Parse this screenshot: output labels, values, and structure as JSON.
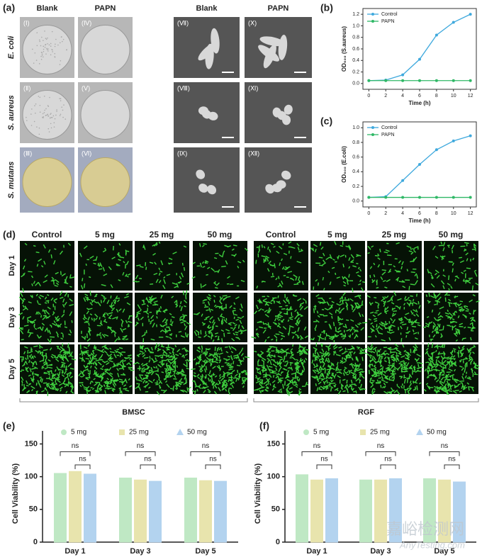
{
  "panel_labels": [
    "(a)",
    "(b)",
    "(c)",
    "(d)",
    "(e)",
    "(f)"
  ],
  "panel_a": {
    "columns": [
      "Blank",
      "PAPN",
      "Blank",
      "PAPN"
    ],
    "rows": [
      "E. coli",
      "S. aureus",
      "S. mutans"
    ],
    "image_labels": [
      [
        "(Ⅰ)",
        "(Ⅳ)",
        "(Ⅶ)",
        "(Ⅹ)"
      ],
      [
        "(Ⅱ)",
        "(Ⅴ)",
        "(Ⅷ)",
        "(Ⅺ)"
      ],
      [
        "(Ⅲ)",
        "(Ⅵ)",
        "(Ⅸ)",
        "(Ⅻ)"
      ]
    ]
  },
  "panel_d": {
    "columns": [
      "Control",
      "5 mg",
      "25 mg",
      "50 mg"
    ],
    "rows": [
      "Day 1",
      "Day 3",
      "Day 5"
    ],
    "groups": [
      "BMSC",
      "RGF"
    ]
  },
  "chart_data": [
    {
      "type": "line",
      "x_label": "Time (h)",
      "y_label": "OD₆₀₀ (S.aureus)",
      "x": [
        0,
        2,
        4,
        6,
        8,
        10,
        12
      ],
      "series": [
        {
          "name": "Control",
          "color": "#3fa9dd",
          "values": [
            0.05,
            0.06,
            0.15,
            0.42,
            0.84,
            1.06,
            1.2
          ]
        },
        {
          "name": "PAPN",
          "color": "#2fb866",
          "values": [
            0.05,
            0.05,
            0.05,
            0.05,
            0.05,
            0.05,
            0.05
          ]
        }
      ],
      "xlim": [
        -0.7,
        12.7
      ],
      "xticks": [
        0,
        2,
        4,
        6,
        8,
        10,
        12
      ],
      "ylim": [
        -0.1,
        1.3
      ],
      "yticks": [
        {
          "value": 0,
          "label": "0.0"
        },
        {
          "value": 0.2,
          "label": "0.2"
        },
        {
          "value": 0.4,
          "label": "0.4"
        },
        {
          "value": 0.6,
          "label": "0.6"
        },
        {
          "value": 0.8,
          "label": "0.8"
        },
        {
          "value": 1,
          "label": "1.0"
        },
        {
          "value": 1.2,
          "label": "1.2"
        }
      ],
      "legend": "upper left"
    },
    {
      "type": "line",
      "x_label": "Time (h)",
      "y_label": "OD₆₀₀ (E.coli)",
      "x": [
        0,
        2,
        4,
        6,
        8,
        10,
        12
      ],
      "series": [
        {
          "name": "Control",
          "color": "#3fa9dd",
          "values": [
            0.05,
            0.06,
            0.28,
            0.5,
            0.7,
            0.82,
            0.89
          ]
        },
        {
          "name": "PAPN",
          "color": "#2fb866",
          "values": [
            0.05,
            0.05,
            0.05,
            0.05,
            0.05,
            0.05,
            0.05
          ]
        }
      ],
      "xlim": [
        -0.7,
        12.7
      ],
      "xticks": [
        0,
        2,
        4,
        6,
        8,
        10,
        12
      ],
      "ylim": [
        -0.08,
        1.08
      ],
      "yticks": [
        {
          "value": 0,
          "label": "0.0"
        },
        {
          "value": 0.2,
          "label": "0.2"
        },
        {
          "value": 0.4,
          "label": "0.4"
        },
        {
          "value": 0.6,
          "label": "0.6"
        },
        {
          "value": 0.8,
          "label": "0.8"
        },
        {
          "value": 1,
          "label": "1.0"
        }
      ],
      "legend": "upper left"
    },
    {
      "type": "bar",
      "y_label": "Cell Viability (%)",
      "categories": [
        "Day 1",
        "Day 3",
        "Day 5"
      ],
      "series": [
        {
          "name": "5 mg",
          "color": "#bfe8c4",
          "values": [
            105,
            98,
            98
          ]
        },
        {
          "name": "25 mg",
          "color": "#e8e4ad",
          "values": [
            108,
            95,
            94
          ]
        },
        {
          "name": "50 mg",
          "color": "#b3d3ef",
          "values": [
            104,
            93,
            93
          ]
        }
      ],
      "ylim": [
        0,
        170
      ],
      "yticks": [
        0,
        50,
        100,
        150
      ],
      "annotations": [
        "ns",
        "ns",
        "ns",
        "ns",
        "ns",
        "ns"
      ],
      "legend": "top"
    },
    {
      "type": "bar",
      "y_label": "Cell Viability (%)",
      "categories": [
        "Day 1",
        "Day 3",
        "Day 5"
      ],
      "series": [
        {
          "name": "5 mg",
          "color": "#bfe8c4",
          "values": [
            103,
            95,
            97
          ]
        },
        {
          "name": "25 mg",
          "color": "#e8e4ad",
          "values": [
            95,
            95,
            95
          ]
        },
        {
          "name": "50 mg",
          "color": "#b3d3ef",
          "values": [
            97,
            97,
            92
          ]
        }
      ],
      "ylim": [
        0,
        170
      ],
      "yticks": [
        0,
        50,
        100,
        150
      ],
      "annotations": [
        "ns",
        "ns",
        "ns",
        "ns",
        "ns",
        "ns"
      ],
      "legend": "top"
    }
  ],
  "watermark": [
    "嘉峪检测网",
    "AnyTesting.com"
  ]
}
